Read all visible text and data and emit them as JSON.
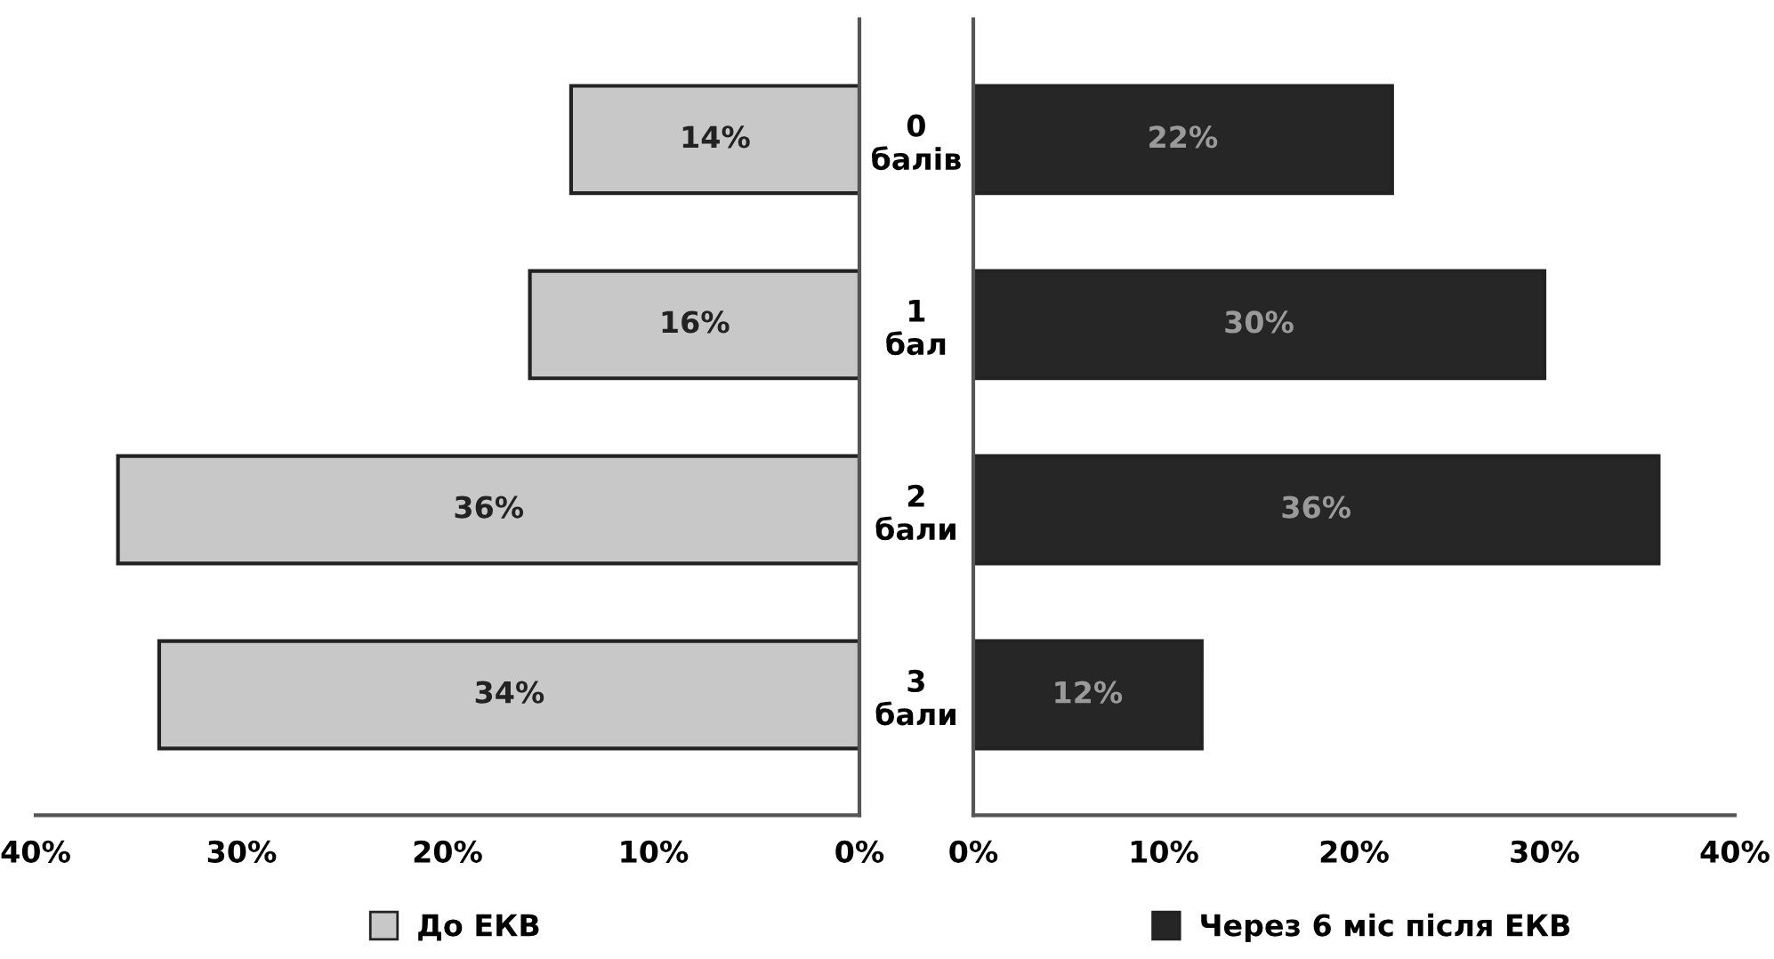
{
  "chart_data": [
    {
      "type": "bar",
      "orientation": "horizontal",
      "categories": [
        "0\nбалів",
        "1\nбал",
        "2\nбали",
        "3\nбали"
      ],
      "series": [
        {
          "name": "До ЕКВ",
          "color": "#c8c8c8",
          "values": [
            14,
            16,
            36,
            34
          ],
          "value_labels": [
            "14%",
            "16%",
            "36%",
            "34%"
          ]
        }
      ],
      "xlim": [
        40,
        0
      ],
      "xticks": [
        {
          "value": 40,
          "label": "40%"
        },
        {
          "value": 30,
          "label": "30%"
        },
        {
          "value": 20,
          "label": "20%"
        },
        {
          "value": 10,
          "label": "10%"
        },
        {
          "value": 0,
          "label": "0%"
        }
      ],
      "grid": false,
      "legend": "bottom"
    },
    {
      "type": "bar",
      "orientation": "horizontal",
      "tick_labels": "x",
      "series": [
        {
          "name": "Через 6 міс після ЕКВ",
          "color": "#262626",
          "values": [
            22,
            30,
            36,
            12
          ],
          "value_labels": [
            "22%",
            "30%",
            "36%",
            "12%"
          ]
        }
      ],
      "xlim": [
        0,
        40
      ],
      "xticks": [
        {
          "value": 0,
          "label": "0%"
        },
        {
          "value": 10,
          "label": "10%"
        },
        {
          "value": 20,
          "label": "20%"
        },
        {
          "value": 30,
          "label": "30%"
        },
        {
          "value": 40,
          "label": "40%"
        }
      ],
      "grid": false,
      "legend": "bottom"
    }
  ]
}
